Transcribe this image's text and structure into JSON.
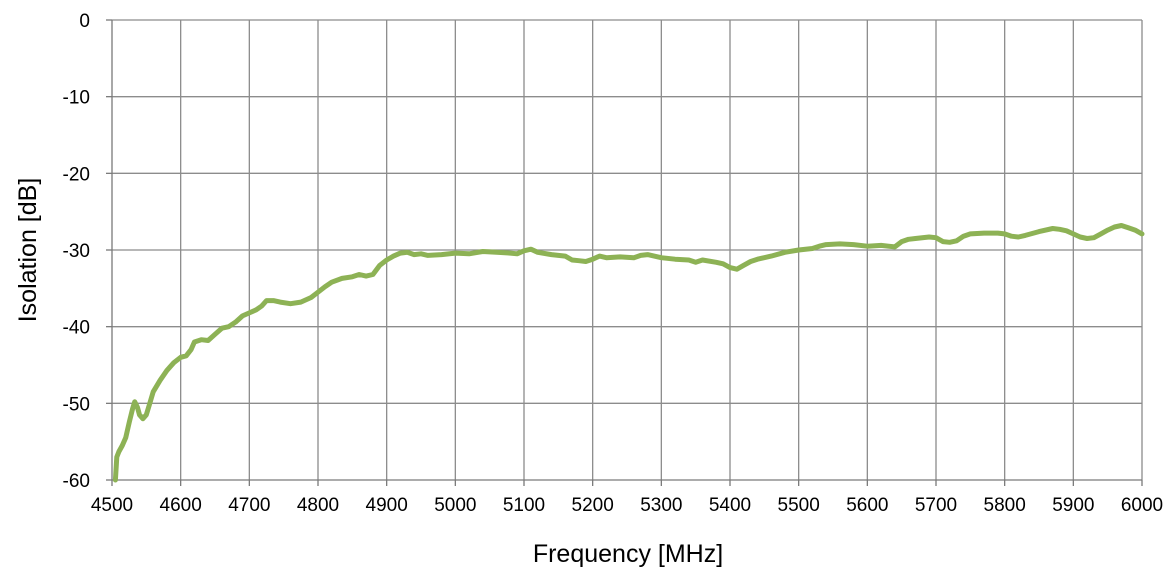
{
  "chart_data": {
    "type": "line",
    "xlabel": "Frequency [MHz]",
    "ylabel": "Isolation  [dB]",
    "xlim": [
      4500,
      6000
    ],
    "ylim": [
      -60,
      0
    ],
    "x_ticks": [
      4500,
      4600,
      4700,
      4800,
      4900,
      5000,
      5100,
      5200,
      5300,
      5400,
      5500,
      5600,
      5700,
      5800,
      5900,
      6000
    ],
    "y_ticks": [
      0,
      -10,
      -20,
      -30,
      -40,
      -50,
      -60
    ],
    "grid": true,
    "legend": "none",
    "series": [
      {
        "color": "#8db255",
        "points": [
          [
            4505,
            -60
          ],
          [
            4507,
            -57
          ],
          [
            4510,
            -56.3
          ],
          [
            4515,
            -55.5
          ],
          [
            4520,
            -54.5
          ],
          [
            4525,
            -52.5
          ],
          [
            4530,
            -50.7
          ],
          [
            4533,
            -49.8
          ],
          [
            4537,
            -50.5
          ],
          [
            4540,
            -51.5
          ],
          [
            4545,
            -52
          ],
          [
            4550,
            -51.5
          ],
          [
            4555,
            -50
          ],
          [
            4560,
            -48.5
          ],
          [
            4570,
            -47
          ],
          [
            4580,
            -45.7
          ],
          [
            4590,
            -44.7
          ],
          [
            4600,
            -44
          ],
          [
            4608,
            -43.8
          ],
          [
            4615,
            -43
          ],
          [
            4620,
            -42
          ],
          [
            4630,
            -41.7
          ],
          [
            4640,
            -41.8
          ],
          [
            4650,
            -41
          ],
          [
            4660,
            -40.2
          ],
          [
            4670,
            -40
          ],
          [
            4680,
            -39.4
          ],
          [
            4690,
            -38.6
          ],
          [
            4700,
            -38.2
          ],
          [
            4710,
            -37.8
          ],
          [
            4718,
            -37.3
          ],
          [
            4725,
            -36.6
          ],
          [
            4735,
            -36.6
          ],
          [
            4745,
            -36.8
          ],
          [
            4760,
            -37
          ],
          [
            4775,
            -36.8
          ],
          [
            4790,
            -36.2
          ],
          [
            4800,
            -35.5
          ],
          [
            4810,
            -34.8
          ],
          [
            4820,
            -34.2
          ],
          [
            4835,
            -33.7
          ],
          [
            4850,
            -33.5
          ],
          [
            4860,
            -33.2
          ],
          [
            4870,
            -33.4
          ],
          [
            4880,
            -33.2
          ],
          [
            4890,
            -32
          ],
          [
            4900,
            -31.3
          ],
          [
            4910,
            -30.8
          ],
          [
            4920,
            -30.4
          ],
          [
            4930,
            -30.3
          ],
          [
            4940,
            -30.6
          ],
          [
            4950,
            -30.5
          ],
          [
            4960,
            -30.7
          ],
          [
            4980,
            -30.6
          ],
          [
            5000,
            -30.4
          ],
          [
            5020,
            -30.5
          ],
          [
            5040,
            -30.2
          ],
          [
            5060,
            -30.3
          ],
          [
            5080,
            -30.4
          ],
          [
            5090,
            -30.5
          ],
          [
            5100,
            -30.1
          ],
          [
            5110,
            -29.9
          ],
          [
            5120,
            -30.3
          ],
          [
            5140,
            -30.6
          ],
          [
            5160,
            -30.8
          ],
          [
            5170,
            -31.3
          ],
          [
            5180,
            -31.4
          ],
          [
            5190,
            -31.5
          ],
          [
            5200,
            -31.2
          ],
          [
            5210,
            -30.8
          ],
          [
            5220,
            -31
          ],
          [
            5240,
            -30.9
          ],
          [
            5260,
            -31
          ],
          [
            5270,
            -30.7
          ],
          [
            5280,
            -30.6
          ],
          [
            5300,
            -31
          ],
          [
            5320,
            -31.2
          ],
          [
            5340,
            -31.3
          ],
          [
            5350,
            -31.6
          ],
          [
            5360,
            -31.3
          ],
          [
            5380,
            -31.6
          ],
          [
            5390,
            -31.8
          ],
          [
            5400,
            -32.3
          ],
          [
            5410,
            -32.5
          ],
          [
            5420,
            -32
          ],
          [
            5430,
            -31.5
          ],
          [
            5440,
            -31.2
          ],
          [
            5460,
            -30.8
          ],
          [
            5480,
            -30.3
          ],
          [
            5500,
            -30
          ],
          [
            5520,
            -29.8
          ],
          [
            5530,
            -29.5
          ],
          [
            5540,
            -29.3
          ],
          [
            5560,
            -29.2
          ],
          [
            5580,
            -29.3
          ],
          [
            5600,
            -29.5
          ],
          [
            5620,
            -29.4
          ],
          [
            5640,
            -29.6
          ],
          [
            5650,
            -28.9
          ],
          [
            5660,
            -28.6
          ],
          [
            5670,
            -28.5
          ],
          [
            5690,
            -28.3
          ],
          [
            5700,
            -28.4
          ],
          [
            5710,
            -28.9
          ],
          [
            5720,
            -29
          ],
          [
            5730,
            -28.8
          ],
          [
            5740,
            -28.2
          ],
          [
            5750,
            -27.9
          ],
          [
            5770,
            -27.8
          ],
          [
            5790,
            -27.8
          ],
          [
            5800,
            -27.9
          ],
          [
            5810,
            -28.2
          ],
          [
            5820,
            -28.3
          ],
          [
            5830,
            -28.1
          ],
          [
            5850,
            -27.6
          ],
          [
            5870,
            -27.2
          ],
          [
            5880,
            -27.3
          ],
          [
            5890,
            -27.5
          ],
          [
            5900,
            -27.9
          ],
          [
            5910,
            -28.3
          ],
          [
            5920,
            -28.5
          ],
          [
            5930,
            -28.4
          ],
          [
            5940,
            -27.9
          ],
          [
            5950,
            -27.4
          ],
          [
            5960,
            -27
          ],
          [
            5970,
            -26.8
          ],
          [
            5980,
            -27.1
          ],
          [
            5990,
            -27.4
          ],
          [
            6000,
            -27.9
          ]
        ]
      }
    ]
  }
}
